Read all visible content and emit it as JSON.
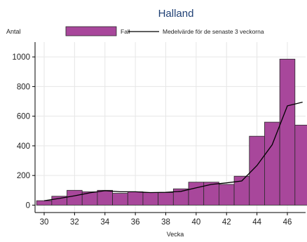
{
  "chart_data": {
    "type": "bar",
    "title": "Halland",
    "xlabel": "Vecka",
    "ylabel": "Antal",
    "x_ticks": [
      30,
      32,
      34,
      36,
      38,
      40,
      42,
      44,
      46
    ],
    "y_ticks": [
      0,
      200,
      400,
      600,
      800,
      1000
    ],
    "xlim": [
      29.4,
      47.2
    ],
    "ylim": [
      -50,
      1100
    ],
    "grid": true,
    "legend_position": "top",
    "colors": {
      "bars": "#a8479b",
      "bar_edge": "#2a2a2a",
      "line": "#000000",
      "title": "#1e3f74"
    },
    "series": [
      {
        "name": "Fall",
        "type": "bar",
        "x": [
          30,
          31,
          32,
          33,
          34,
          35,
          36,
          37,
          38,
          39,
          40,
          41,
          42,
          43,
          44,
          45,
          46,
          47
        ],
        "values": [
          30,
          60,
          100,
          90,
          100,
          80,
          90,
          85,
          85,
          110,
          155,
          155,
          140,
          195,
          465,
          560,
          985,
          540
        ]
      },
      {
        "name": "Medelvärde för de senaste 3 veckorna",
        "type": "line",
        "x": [
          30,
          31,
          32,
          33,
          34,
          35,
          36,
          37,
          38,
          39,
          40,
          41,
          42,
          43,
          44,
          45,
          46,
          47
        ],
        "values": [
          30,
          45,
          63,
          83,
          97,
          90,
          90,
          85,
          87,
          93,
          117,
          140,
          150,
          163,
          267,
          407,
          670,
          695
        ]
      }
    ]
  }
}
